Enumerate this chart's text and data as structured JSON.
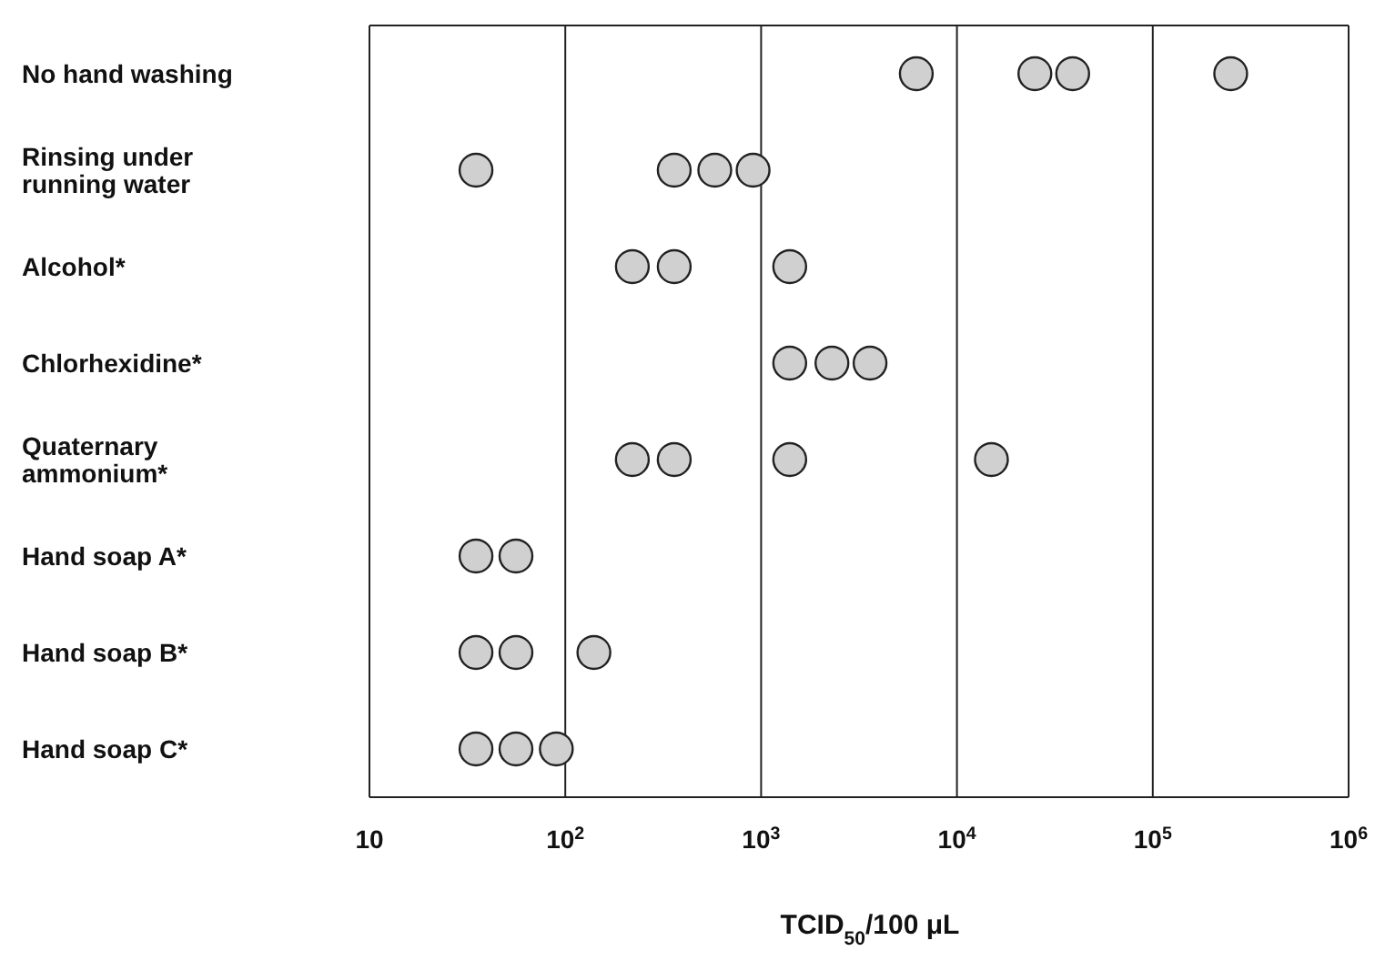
{
  "chart_data": {
    "type": "scatter",
    "orientation": "horizontal",
    "xlabel": "TCID$_{50}$/100 μL",
    "categories": [
      "No hand washing",
      "Rinsing under running water",
      "Alcohol*",
      "Chlorhexidine*",
      "Quaternary ammonium*",
      "Hand soap A*",
      "Hand soap B*",
      "Hand soap C*"
    ],
    "series": [
      {
        "color": "#d0d0d0",
        "x": [
          "No hand washing",
          "No hand washing",
          "No hand washing",
          "No hand washing",
          "Rinsing under running water",
          "Rinsing under running water",
          "Rinsing under running water",
          "Rinsing under running water",
          "Alcohol*",
          "Alcohol*",
          "Alcohol*",
          "Chlorhexidine*",
          "Chlorhexidine*",
          "Chlorhexidine*",
          "Quaternary ammonium*",
          "Quaternary ammonium*",
          "Quaternary ammonium*",
          "Quaternary ammonium*",
          "Hand soap A*",
          "Hand soap A*",
          "Hand soap B*",
          "Hand soap B*",
          "Hand soap B*",
          "Hand soap C*",
          "Hand soap C*",
          "Hand soap C*"
        ],
        "values": [
          6200,
          25000,
          39000,
          250000,
          35,
          360,
          580,
          910,
          220,
          360,
          1400,
          1400,
          2300,
          3600,
          220,
          360,
          1400,
          15000,
          35,
          56,
          35,
          56,
          140,
          35,
          56,
          90
        ]
      }
    ],
    "xlim": [
      10,
      1000000
    ],
    "xticks": [
      10,
      {
        "value": 100,
        "label": "10$^{2}$"
      },
      {
        "value": 1000,
        "label": "10$^{3}$"
      },
      {
        "value": 10000,
        "label": "10$^{4}$"
      },
      {
        "value": 100000,
        "label": "10$^{5}$"
      },
      {
        "value": 1000000,
        "label": "10$^{6}$"
      }
    ],
    "log": "x",
    "grid": "x",
    "marker": "circle",
    "legend": false
  }
}
